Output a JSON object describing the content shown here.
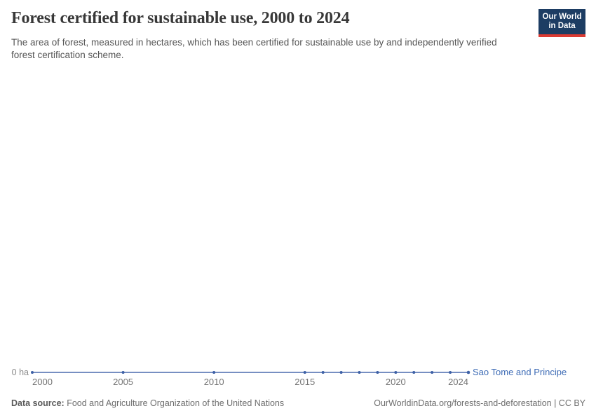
{
  "header": {
    "title": "Forest certified for sustainable use, 2000 to 2024",
    "subtitle": "The area of forest, measured in hectares, which has been certified for sustainable use by and independently verified forest certification scheme.",
    "logo_line1": "Our World",
    "logo_line2": "in Data"
  },
  "chart_data": {
    "type": "line",
    "title": "Forest certified for sustainable use, 2000 to 2024",
    "xlabel": "",
    "ylabel": "",
    "unit": "ha",
    "x": [
      2000,
      2005,
      2010,
      2015,
      2016,
      2017,
      2018,
      2019,
      2020,
      2021,
      2022,
      2023,
      2024
    ],
    "series": [
      {
        "name": "Sao Tome and Principe",
        "values": [
          0,
          0,
          0,
          0,
          0,
          0,
          0,
          0,
          0,
          0,
          0,
          0,
          0
        ]
      }
    ],
    "xlim": [
      2000,
      2024
    ],
    "y_zero_label": "0 ha",
    "x_ticks": [
      {
        "year": 2000,
        "label": "2000",
        "align": "left"
      },
      {
        "year": 2005,
        "label": "2005",
        "align": "center"
      },
      {
        "year": 2010,
        "label": "2010",
        "align": "center"
      },
      {
        "year": 2015,
        "label": "2015",
        "align": "center"
      },
      {
        "year": 2020,
        "label": "2020",
        "align": "center"
      },
      {
        "year": 2024,
        "label": "2024",
        "align": "right"
      }
    ],
    "grid": false,
    "legend_position": "end-of-line",
    "line_color": "#4a6aad",
    "dot_color": "#3e61a6"
  },
  "footer": {
    "source_label": "Data source:",
    "source_text": "Food and Agriculture Organization of the United Nations",
    "attribution": "OurWorldinData.org/forests-and-deforestation | CC BY"
  },
  "colors": {
    "logo_bg": "#1d3d63",
    "logo_stripe": "#dc3b33",
    "series_blue": "#4a6aad"
  }
}
